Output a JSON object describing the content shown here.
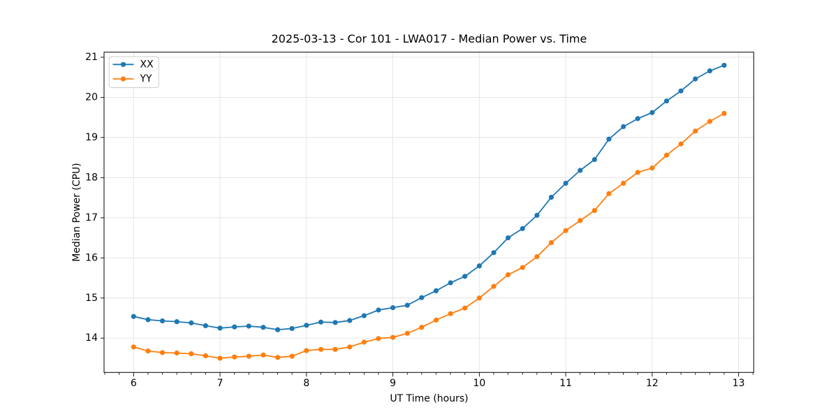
{
  "figure": {
    "background": "#ffffff",
    "spine_color": "#000000",
    "grid_color": "#e2e2e2",
    "tick_label_color": "#000000"
  },
  "chart_data": {
    "type": "line",
    "title": "2025-03-13 - Cor 101 - LWA017 - Median Power vs. Time",
    "xlabel": "UT Time (hours)",
    "ylabel": "Median Power (CPU)",
    "xlim": [
      5.658,
      13.175
    ],
    "ylim": [
      13.146,
      21.126
    ],
    "x_ticks": [
      6,
      7,
      8,
      9,
      10,
      11,
      12,
      13
    ],
    "y_ticks": [
      14,
      15,
      16,
      17,
      18,
      19,
      20,
      21
    ],
    "x_minor_divisions": 6,
    "grid": true,
    "legend_position": "upper left",
    "marker": "circle",
    "x": [
      6.0,
      6.167,
      6.333,
      6.5,
      6.667,
      6.833,
      7.0,
      7.167,
      7.333,
      7.5,
      7.667,
      7.833,
      8.0,
      8.167,
      8.333,
      8.5,
      8.667,
      8.833,
      9.0,
      9.167,
      9.333,
      9.5,
      9.667,
      9.833,
      10.0,
      10.167,
      10.333,
      10.5,
      10.667,
      10.833,
      11.0,
      11.167,
      11.333,
      11.5,
      11.667,
      11.833,
      12.0,
      12.167,
      12.333,
      12.5,
      12.667,
      12.833
    ],
    "series": [
      {
        "name": "XX",
        "color": "#1f77b4",
        "values": [
          14.54,
          14.46,
          14.43,
          14.41,
          14.38,
          14.31,
          14.25,
          14.28,
          14.3,
          14.27,
          14.21,
          14.24,
          14.32,
          14.4,
          14.39,
          14.44,
          14.56,
          14.7,
          14.76,
          14.82,
          15.01,
          15.18,
          15.38,
          15.54,
          15.8,
          16.13,
          16.5,
          16.73,
          17.06,
          17.51,
          17.86,
          18.18,
          18.45,
          18.96,
          19.27,
          19.47,
          19.62,
          19.91,
          20.16,
          20.46,
          20.66,
          20.8
        ]
      },
      {
        "name": "YY",
        "color": "#ff7f0e",
        "values": [
          13.78,
          13.68,
          13.64,
          13.63,
          13.61,
          13.56,
          13.5,
          13.53,
          13.55,
          13.58,
          13.52,
          13.55,
          13.69,
          13.72,
          13.72,
          13.78,
          13.9,
          13.99,
          14.02,
          14.12,
          14.27,
          14.45,
          14.61,
          14.75,
          15.0,
          15.29,
          15.58,
          15.76,
          16.03,
          16.38,
          16.68,
          16.93,
          17.18,
          17.6,
          17.86,
          18.13,
          18.24,
          18.56,
          18.84,
          19.16,
          19.4,
          19.6
        ]
      }
    ]
  }
}
